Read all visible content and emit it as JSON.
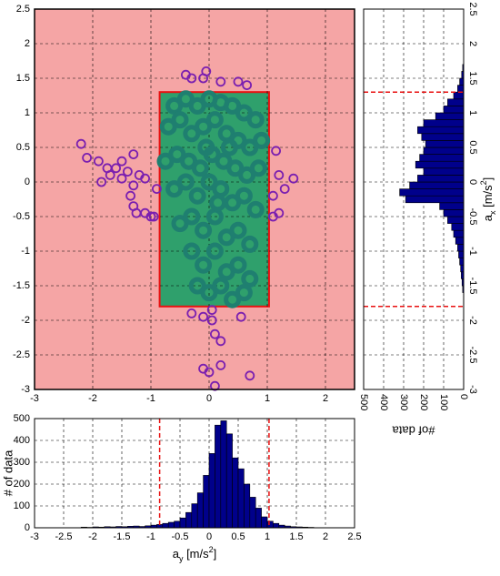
{
  "chart_data": [
    {
      "type": "scatter",
      "background": "#f5a5a5",
      "grid": true,
      "xlim": [
        -3,
        2.5
      ],
      "ylim": [
        -3,
        2.5
      ],
      "xticks": [
        -3,
        -2,
        -1,
        0,
        1,
        2
      ],
      "yticks": [
        -3,
        -2.5,
        -2,
        -1.5,
        -1,
        -0.5,
        0,
        0.5,
        1,
        1.5,
        2,
        2.5
      ],
      "limits": {
        "x": [
          -0.85,
          1.03
        ],
        "y": [
          -1.8,
          1.3
        ],
        "fill": "#2fa06c",
        "edge": "#e81010"
      },
      "series": [
        {
          "color": "#7a1fb0",
          "x": [
            -2.2,
            -2.1,
            -1.9,
            -1.75,
            -1.6,
            -1.5,
            -1.3,
            -1.2,
            -1.1,
            -1.7,
            -1.85,
            -1.5,
            -1.4,
            -1.3,
            -1.35,
            -1.25,
            -1.3,
            -1.1,
            -0.95,
            -0.9,
            -1.0,
            -0.4,
            -0.3,
            -0.1,
            -0.05,
            0.2,
            0.5,
            0.65,
            1.15,
            1.2,
            1.3,
            1.45,
            1.1,
            1.2,
            1.1,
            -0.3,
            -0.1,
            0.05,
            0.1,
            0.2,
            0.05,
            0.55,
            -0.1,
            0.0,
            0.1,
            0.7,
            0.2
          ],
          "y": [
            0.55,
            0.35,
            0.3,
            0.2,
            0.2,
            0.3,
            0.4,
            0.1,
            0.05,
            0.1,
            0.0,
            0.05,
            0.15,
            -0.05,
            -0.2,
            -0.45,
            -0.35,
            -0.45,
            -0.5,
            -0.1,
            -0.5,
            1.55,
            1.5,
            1.5,
            1.6,
            1.45,
            1.45,
            1.4,
            0.45,
            0.1,
            -0.1,
            0.05,
            -0.2,
            -0.45,
            -0.5,
            -1.9,
            -1.95,
            -2.0,
            -2.2,
            -2.3,
            -1.85,
            -1.95,
            -2.7,
            -2.75,
            -2.95,
            -2.8,
            -2.65
          ]
        },
        {
          "color": "#1f7f70",
          "x": [
            -0.6,
            -0.4,
            -0.2,
            0,
            0.2,
            0.4,
            0.6,
            0.8,
            -0.7,
            -0.5,
            -0.3,
            -0.1,
            0.1,
            0.3,
            0.5,
            0.7,
            0.9,
            -0.75,
            -0.55,
            -0.35,
            -0.15,
            0.05,
            0.25,
            0.45,
            0.65,
            0.85,
            -0.6,
            -0.4,
            -0.2,
            0,
            0.2,
            0.4,
            0.6,
            0.8,
            -0.5,
            -0.3,
            -0.1,
            0.1,
            0.3,
            0.5,
            0.7,
            -0.3,
            -0.1,
            0.1,
            0.3,
            0.5,
            0.7,
            -0.2,
            0,
            0.2,
            0.4,
            0.6,
            0.15,
            -0.05,
            0.35
          ],
          "y": [
            1.1,
            1.2,
            1.1,
            1.2,
            1.15,
            1.1,
            1.0,
            0.9,
            0.8,
            0.9,
            0.7,
            0.8,
            0.9,
            0.7,
            0.6,
            0.5,
            0.6,
            0.3,
            0.4,
            0.3,
            0.2,
            0.4,
            0.3,
            0.2,
            0.1,
            0.2,
            -0.1,
            0.0,
            -0.2,
            0.0,
            -0.1,
            -0.3,
            -0.2,
            -0.4,
            -0.6,
            -0.5,
            -0.7,
            -0.5,
            -0.8,
            -0.7,
            -0.9,
            -1.0,
            -1.2,
            -1.0,
            -1.3,
            -1.2,
            -1.4,
            -1.5,
            -1.6,
            -1.5,
            -1.7,
            -1.6,
            -0.3,
            0.5,
            0.5
          ]
        }
      ]
    },
    {
      "type": "histogram",
      "orientation": "vertical",
      "color": "#00008b",
      "grid": true,
      "xlabel": [
        "a",
        "y",
        " [m/s",
        "2",
        "]"
      ],
      "ylabel": "# of data",
      "xlim": [
        -3,
        2.5
      ],
      "ylim": [
        0,
        500
      ],
      "xticks": [
        -3,
        -2.5,
        -2,
        -1.5,
        -1,
        -0.5,
        0,
        0.5,
        1,
        1.5,
        2,
        2.5
      ],
      "yticks": [
        0,
        100,
        200,
        300,
        400,
        500
      ],
      "thresholds": [
        -0.85,
        1.03
      ],
      "threshold_color": "#e81010",
      "bins": [
        -2.2,
        -2.1,
        -2.0,
        -1.9,
        -1.8,
        -1.7,
        -1.6,
        -1.5,
        -1.4,
        -1.3,
        -1.2,
        -1.1,
        -1.0,
        -0.9,
        -0.8,
        -0.7,
        -0.6,
        -0.5,
        -0.4,
        -0.3,
        -0.2,
        -0.1,
        0.0,
        0.1,
        0.2,
        0.3,
        0.4,
        0.5,
        0.6,
        0.7,
        0.8,
        0.9,
        1.0,
        1.1,
        1.2,
        1.3,
        1.4,
        1.5,
        1.6,
        1.7,
        1.8
      ],
      "counts": [
        3,
        2,
        4,
        3,
        5,
        4,
        6,
        5,
        7,
        8,
        6,
        9,
        12,
        15,
        20,
        25,
        30,
        45,
        70,
        110,
        160,
        240,
        340,
        470,
        490,
        430,
        320,
        270,
        200,
        140,
        90,
        50,
        30,
        20,
        12,
        8,
        5,
        4,
        3,
        2
      ]
    },
    {
      "type": "histogram",
      "orientation": "horizontal",
      "color": "#00008b",
      "grid": true,
      "xlabel": "#of data",
      "ylabel": [
        "a",
        "x",
        " [m/s",
        "2",
        "]"
      ],
      "xlim": [
        500,
        0
      ],
      "ylim": [
        -3,
        2.5
      ],
      "xticks": [
        500,
        400,
        300,
        200,
        100,
        0
      ],
      "yticks": [
        -3,
        -2.5,
        -2,
        -1.5,
        -1,
        -0.5,
        0,
        0.5,
        1,
        1.5,
        2,
        2.5
      ],
      "thresholds": [
        -1.8,
        1.3
      ],
      "threshold_color": "#e81010",
      "bins": [
        -1.6,
        -1.5,
        -1.4,
        -1.3,
        -1.2,
        -1.1,
        -1.0,
        -0.9,
        -0.8,
        -0.7,
        -0.6,
        -0.5,
        -0.4,
        -0.3,
        -0.2,
        -0.1,
        0.0,
        0.1,
        0.2,
        0.3,
        0.4,
        0.5,
        0.6,
        0.7,
        0.8,
        0.9,
        1.0,
        1.1,
        1.2,
        1.3,
        1.4,
        1.5,
        1.6,
        1.7
      ],
      "counts": [
        5,
        8,
        12,
        15,
        20,
        25,
        30,
        40,
        50,
        60,
        80,
        100,
        120,
        290,
        320,
        270,
        230,
        200,
        240,
        220,
        200,
        190,
        210,
        230,
        200,
        140,
        100,
        80,
        50,
        30,
        20,
        10,
        5
      ]
    }
  ]
}
